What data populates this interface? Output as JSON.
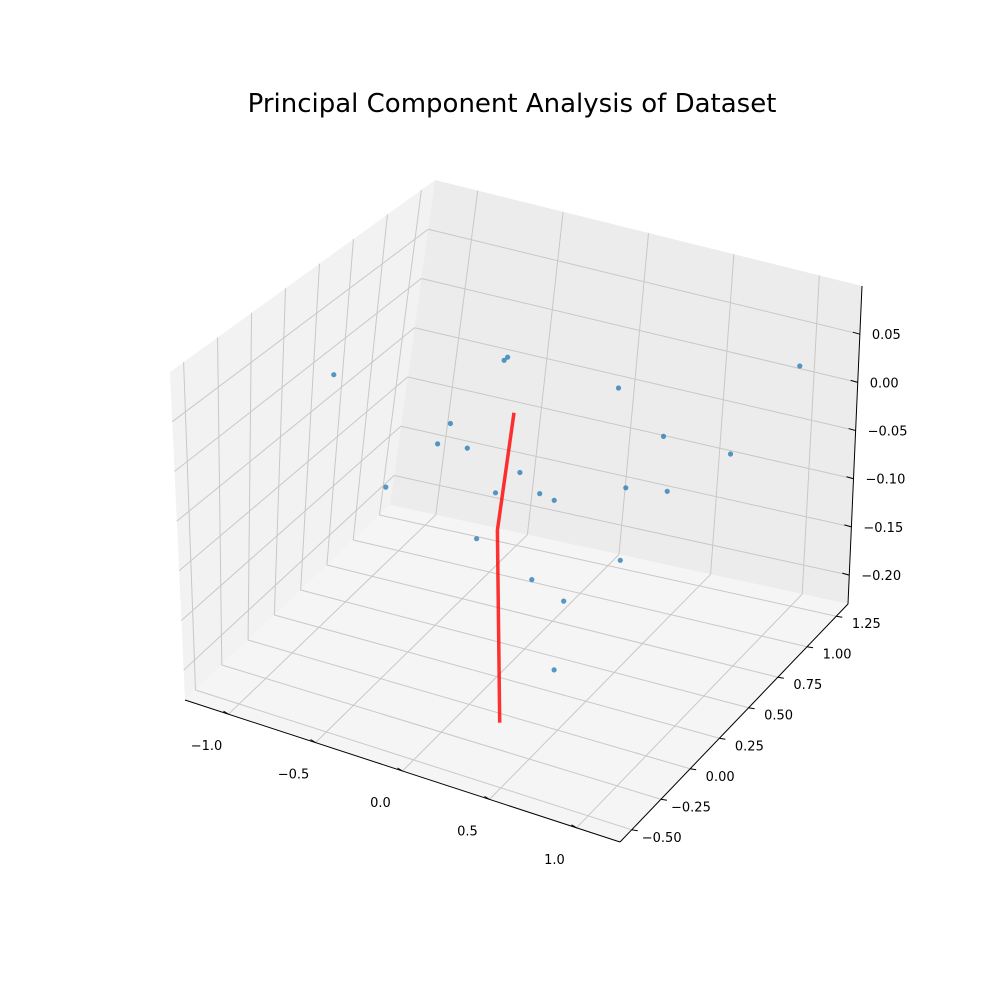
{
  "chart_data": {
    "type": "scatter",
    "projection": "3d",
    "title": "Principal Component Analysis of Dataset",
    "xlabel": "",
    "ylabel": "",
    "zlabel": "",
    "grid": true,
    "xlim": [
      -1.25,
      1.25
    ],
    "ylim": [
      -0.6,
      1.35
    ],
    "zlim": [
      -0.23,
      0.1
    ],
    "x_ticks": [
      {
        "value": -1.0,
        "label": "−1.0"
      },
      {
        "value": -0.5,
        "label": "−0.5"
      },
      {
        "value": 0.0,
        "label": "0.0"
      },
      {
        "value": 0.5,
        "label": "0.5"
      },
      {
        "value": 1.0,
        "label": "1.0"
      }
    ],
    "y_ticks": [
      {
        "value": -0.5,
        "label": "−0.50"
      },
      {
        "value": -0.25,
        "label": "−0.25"
      },
      {
        "value": 0.0,
        "label": "0.00"
      },
      {
        "value": 0.25,
        "label": "0.25"
      },
      {
        "value": 0.5,
        "label": "0.50"
      },
      {
        "value": 0.75,
        "label": "0.75"
      },
      {
        "value": 1.0,
        "label": "1.00"
      },
      {
        "value": 1.25,
        "label": "1.25"
      }
    ],
    "z_ticks": [
      {
        "value": -0.2,
        "label": "−0.20"
      },
      {
        "value": -0.15,
        "label": "−0.15"
      },
      {
        "value": -0.1,
        "label": "−0.10"
      },
      {
        "value": -0.05,
        "label": "−0.05"
      },
      {
        "value": 0.0,
        "label": "0.00"
      },
      {
        "value": 0.05,
        "label": "0.05"
      }
    ],
    "series": [
      {
        "kind": "scatter",
        "color": "#1f77b4",
        "points": [
          [
            -1.1,
            0.45,
            0.0
          ],
          [
            -0.55,
            0.1,
            -0.05
          ],
          [
            -0.4,
            0.4,
            -0.01
          ],
          [
            -0.4,
            0.3,
            -0.02
          ],
          [
            -0.3,
            0.4,
            -0.03
          ],
          [
            -0.3,
            0.7,
            0.03
          ],
          [
            -0.25,
            0.6,
            0.04
          ],
          [
            -0.1,
            0.35,
            -0.06
          ],
          [
            -0.1,
            0.2,
            -0.09
          ],
          [
            0.0,
            0.4,
            -0.04
          ],
          [
            0.05,
            0.5,
            -0.07
          ],
          [
            0.1,
            0.55,
            -0.08
          ],
          [
            0.15,
            0.3,
            -0.13
          ],
          [
            0.2,
            0.9,
            0.0
          ],
          [
            0.3,
            0.35,
            -0.15
          ],
          [
            0.35,
            0.2,
            -0.2
          ],
          [
            0.4,
            0.7,
            -0.07
          ],
          [
            0.45,
            0.6,
            -0.13
          ],
          [
            0.5,
            0.85,
            -0.03
          ],
          [
            0.6,
            0.75,
            -0.07
          ],
          [
            0.75,
            1.05,
            -0.06
          ],
          [
            0.95,
            1.3,
            0.01
          ]
        ]
      },
      {
        "kind": "line",
        "name": "",
        "color": "#ff0000",
        "points": [
          [
            -0.18,
            0.6,
            -0.01
          ],
          [
            -0.05,
            0.3,
            -0.09
          ],
          [
            0.3,
            -0.2,
            -0.21
          ]
        ]
      }
    ]
  }
}
